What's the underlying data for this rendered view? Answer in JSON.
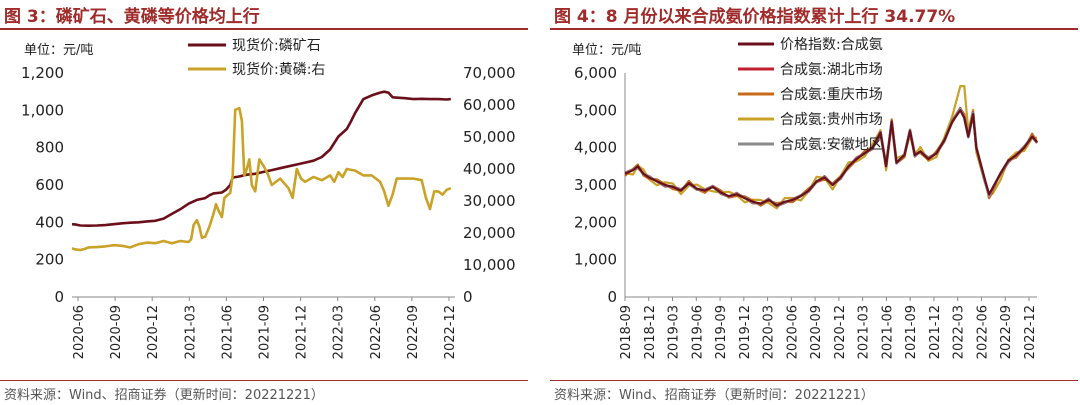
{
  "left": {
    "title": "图 3：磷矿石、黄磷等价格均上行",
    "source": "资料来源：Wind、招商证券（更新时间：20221221）",
    "chart_data": {
      "type": "line",
      "unit_label": "单位：元/吨",
      "x_ticks": [
        "2020-06",
        "2020-09",
        "2020-12",
        "2021-03",
        "2021-06",
        "2021-09",
        "2021-12",
        "2022-03",
        "2022-06",
        "2022-09",
        "2022-12"
      ],
      "y_left": {
        "min": 0,
        "max": 1200,
        "ticks": [
          "0",
          "200",
          "400",
          "600",
          "800",
          "1,000",
          "1,200"
        ]
      },
      "y_right": {
        "min": 0,
        "max": 70000,
        "ticks": [
          "0",
          "10,000",
          "20,000",
          "30,000",
          "40,000",
          "50,000",
          "60,000",
          "70,000"
        ]
      },
      "series": [
        {
          "name": "现货价:磷矿石",
          "axis": "left",
          "color": "#6b0f1a",
          "points": [
            [
              0,
              390
            ],
            [
              0.5,
              388
            ],
            [
              1,
              383
            ],
            [
              2,
              382
            ],
            [
              3,
              383
            ],
            [
              4,
              385
            ],
            [
              5,
              390
            ],
            [
              6,
              395
            ],
            [
              7,
              398
            ],
            [
              8,
              400
            ],
            [
              9,
              405
            ],
            [
              10,
              408
            ],
            [
              11,
              420
            ],
            [
              12,
              445
            ],
            [
              13,
              470
            ],
            [
              14,
              500
            ],
            [
              14.5,
              510
            ],
            [
              15,
              520
            ],
            [
              16,
              530
            ],
            [
              16.5,
              545
            ],
            [
              17,
              555
            ],
            [
              18,
              560
            ],
            [
              18.5,
              575
            ],
            [
              19,
              600
            ],
            [
              19.3,
              640
            ],
            [
              20,
              645
            ],
            [
              21,
              655
            ],
            [
              22,
              660
            ],
            [
              23,
              670
            ],
            [
              24,
              680
            ],
            [
              25,
              690
            ],
            [
              26,
              700
            ],
            [
              27,
              710
            ],
            [
              28,
              720
            ],
            [
              29,
              730
            ],
            [
              30,
              750
            ],
            [
              31,
              790
            ],
            [
              32,
              860
            ],
            [
              33,
              900
            ],
            [
              33.5,
              940
            ],
            [
              34,
              985
            ],
            [
              35,
              1060
            ],
            [
              36,
              1080
            ],
            [
              37,
              1095
            ],
            [
              37.5,
              1100
            ],
            [
              38,
              1095
            ],
            [
              38.5,
              1070
            ],
            [
              40,
              1065
            ],
            [
              41,
              1060
            ],
            [
              42,
              1062
            ],
            [
              43,
              1060
            ],
            [
              44,
              1060
            ],
            [
              45,
              1058
            ],
            [
              45.5,
              1060
            ]
          ]
        },
        {
          "name": "现货价:黄磷:右",
          "axis": "right",
          "color": "#c9a227",
          "points": [
            [
              0,
              15200
            ],
            [
              0.5,
              14800
            ],
            [
              1,
              14700
            ],
            [
              1.5,
              15000
            ],
            [
              2,
              15500
            ],
            [
              3,
              15600
            ],
            [
              4,
              15800
            ],
            [
              5,
              16200
            ],
            [
              6,
              16000
            ],
            [
              7,
              15500
            ],
            [
              8,
              16500
            ],
            [
              9,
              17000
            ],
            [
              10,
              16800
            ],
            [
              11,
              17500
            ],
            [
              12,
              16800
            ],
            [
              13,
              17500
            ],
            [
              14,
              17200
            ],
            [
              14.3,
              18000
            ],
            [
              14.6,
              22500
            ],
            [
              15,
              24000
            ],
            [
              15.3,
              22000
            ],
            [
              15.6,
              18500
            ],
            [
              16,
              18800
            ],
            [
              16.5,
              22000
            ],
            [
              17,
              26000
            ],
            [
              17.3,
              29000
            ],
            [
              17.6,
              27000
            ],
            [
              18,
              25000
            ],
            [
              18.3,
              31000
            ],
            [
              19,
              32500
            ],
            [
              19.3,
              38000
            ],
            [
              19.6,
              58500
            ],
            [
              20.1,
              59000
            ],
            [
              20.4,
              55000
            ],
            [
              20.7,
              38000
            ],
            [
              21,
              40000
            ],
            [
              21.3,
              43000
            ],
            [
              21.6,
              35000
            ],
            [
              22,
              33000
            ],
            [
              22.5,
              43000
            ],
            [
              23,
              41000
            ],
            [
              23.5,
              38500
            ],
            [
              24,
              35000
            ],
            [
              25,
              37000
            ],
            [
              26,
              34000
            ],
            [
              26.5,
              31000
            ],
            [
              27,
              40000
            ],
            [
              27.5,
              37000
            ],
            [
              28,
              36000
            ],
            [
              29,
              37500
            ],
            [
              30,
              36500
            ],
            [
              31,
              38000
            ],
            [
              31.5,
              36000
            ],
            [
              32,
              39000
            ],
            [
              32.5,
              37500
            ],
            [
              33,
              40000
            ],
            [
              34,
              39500
            ],
            [
              35,
              38000
            ],
            [
              36,
              38000
            ],
            [
              37,
              36000
            ],
            [
              37.5,
              33000
            ],
            [
              38,
              28500
            ],
            [
              38.5,
              32000
            ],
            [
              39,
              37000
            ],
            [
              40,
              37000
            ],
            [
              41,
              37000
            ],
            [
              42,
              36500
            ],
            [
              42.5,
              31000
            ],
            [
              43,
              27500
            ],
            [
              43.5,
              33000
            ],
            [
              44,
              33000
            ],
            [
              44.5,
              32000
            ],
            [
              45,
              33500
            ],
            [
              45.5,
              34000
            ]
          ]
        }
      ],
      "x_max": 46
    }
  },
  "right": {
    "title": "图 4：8 月份以来合成氨价格指数累计上行 34.77%",
    "source": "资料来源：Wind、招商证券（更新时间：20221221）",
    "chart_data": {
      "type": "line",
      "unit_label": "单位：元/吨",
      "x_ticks": [
        "2018-09",
        "2018-12",
        "2019-03",
        "2019-06",
        "2019-09",
        "2019-12",
        "2020-03",
        "2020-06",
        "2020-09",
        "2020-12",
        "2021-03",
        "2021-06",
        "2021-09",
        "2021-12",
        "2022-03",
        "2022-06",
        "2022-09",
        "2022-12"
      ],
      "y_left": {
        "min": 0,
        "max": 6000,
        "ticks": [
          "0",
          "1,000",
          "2,000",
          "3,000",
          "4,000",
          "5,000",
          "6,000"
        ]
      },
      "series_names": [
        "价格指数:合成氨",
        "合成氨:湖北市场",
        "合成氨:重庆市场",
        "合成氨:贵州市场",
        "合成氨:安徽地区"
      ],
      "series_colors": [
        "#6b0f1a",
        "#c0202e",
        "#c86a1a",
        "#c9a227",
        "#8a8a8a"
      ],
      "base_points": [
        [
          0,
          3300
        ],
        [
          1,
          3400
        ],
        [
          1.6,
          3500
        ],
        [
          2.3,
          3300
        ],
        [
          3,
          3200
        ],
        [
          4,
          3100
        ],
        [
          5,
          3000
        ],
        [
          6,
          2950
        ],
        [
          7,
          2850
        ],
        [
          8,
          3050
        ],
        [
          9,
          2900
        ],
        [
          10,
          2850
        ],
        [
          11,
          2950
        ],
        [
          12,
          2800
        ],
        [
          13,
          2700
        ],
        [
          14,
          2750
        ],
        [
          15,
          2650
        ],
        [
          16,
          2550
        ],
        [
          17,
          2500
        ],
        [
          18,
          2600
        ],
        [
          19,
          2450
        ],
        [
          20,
          2550
        ],
        [
          21,
          2600
        ],
        [
          22,
          2700
        ],
        [
          23,
          2850
        ],
        [
          24,
          3100
        ],
        [
          25,
          3200
        ],
        [
          26,
          3000
        ],
        [
          27,
          3200
        ],
        [
          28,
          3500
        ],
        [
          29,
          3700
        ],
        [
          30,
          3850
        ],
        [
          31,
          4000
        ],
        [
          32,
          4400
        ],
        [
          32.7,
          3500
        ],
        [
          33.4,
          4700
        ],
        [
          34,
          3600
        ],
        [
          35,
          3800
        ],
        [
          35.7,
          4450
        ],
        [
          36.3,
          3800
        ],
        [
          37,
          3900
        ],
        [
          38,
          3700
        ],
        [
          39,
          3850
        ],
        [
          40,
          4200
        ],
        [
          41,
          4700
        ],
        [
          42,
          5000
        ],
        [
          42.5,
          4800
        ],
        [
          43,
          4300
        ],
        [
          43.6,
          4900
        ],
        [
          44,
          4000
        ],
        [
          45,
          3200
        ],
        [
          45.6,
          2750
        ],
        [
          46,
          2900
        ],
        [
          47,
          3300
        ],
        [
          48,
          3650
        ],
        [
          49,
          3800
        ],
        [
          50,
          4000
        ],
        [
          51,
          4300
        ],
        [
          51.6,
          4150
        ]
      ],
      "x_max": 51.6
    }
  }
}
